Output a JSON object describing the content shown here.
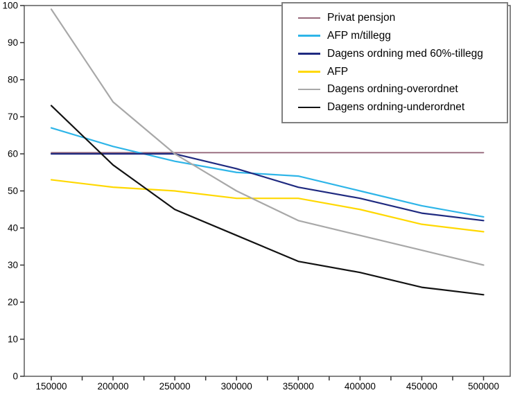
{
  "chart_data": {
    "type": "line",
    "title": "",
    "xlabel": "",
    "ylabel": "",
    "x": [
      150000,
      200000,
      250000,
      300000,
      350000,
      400000,
      450000,
      500000
    ],
    "x_tick_labels": [
      "150000",
      "200000",
      "250000",
      "300000",
      "350000",
      "400000",
      "450000",
      "500000"
    ],
    "x_minor_tick_step": 25000,
    "ylim": [
      0,
      100
    ],
    "y_ticks": [
      0,
      10,
      20,
      30,
      40,
      50,
      60,
      70,
      80,
      90,
      100
    ],
    "grid": false,
    "legend_position": "top-right",
    "frame_color": "#5a5a5a",
    "tick_color": "#333333",
    "label_color": "#000000",
    "series": [
      {
        "id": "privat-pensjon",
        "name": "Privat pensjon",
        "color": "#96687a",
        "values": [
          60,
          60,
          60,
          60,
          60,
          60,
          60,
          60
        ],
        "offset_y": -1.7,
        "width": 1.8
      },
      {
        "id": "afp-m-tillegg",
        "name": "AFP m/tillegg",
        "color": "#2eb5e8",
        "values": [
          67,
          62,
          58,
          55,
          54,
          50,
          46,
          43
        ],
        "offset_y": 0,
        "width": 2.2
      },
      {
        "id": "dagens-ordning-med-60-tillegg",
        "name": "Dagens ordning med 60%-tillegg",
        "color": "#1f2a80",
        "values": [
          60,
          60,
          60,
          56,
          51,
          48,
          44,
          42
        ],
        "offset_y": 0,
        "width": 2.2
      },
      {
        "id": "afp",
        "name": "AFP",
        "color": "#ffd800",
        "values": [
          53,
          51,
          50,
          48,
          48,
          45,
          41,
          39
        ],
        "offset_y": 0,
        "width": 2.2
      },
      {
        "id": "dagens-ordning-overordnet",
        "name": "Dagens ordning-overordnet",
        "color": "#a8a8a8",
        "values": [
          99,
          74,
          60,
          50,
          42,
          38,
          34,
          30
        ],
        "offset_y": 0,
        "width": 2.2
      },
      {
        "id": "dagens-ordning-underordnet",
        "name": "Dagens ordning-underordnet",
        "color": "#121212",
        "values": [
          73,
          57,
          45,
          38,
          31,
          28,
          24,
          22
        ],
        "offset_y": 0,
        "width": 2.2
      }
    ]
  }
}
